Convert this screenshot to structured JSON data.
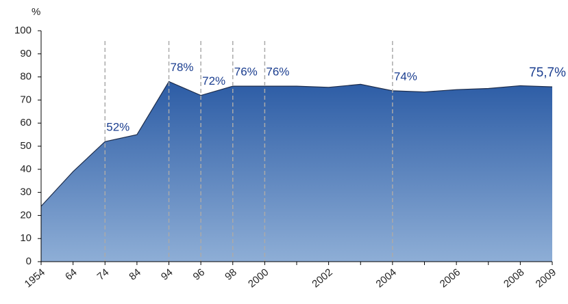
{
  "chart_data": {
    "type": "area",
    "y_label": "%",
    "categories": [
      "1954",
      "64",
      "74",
      "84",
      "94",
      "96",
      "98",
      "2000",
      null,
      "2002",
      null,
      "2004",
      null,
      "2006",
      null,
      "2008",
      "2009"
    ],
    "series": [
      {
        "color": "#2f5fa6",
        "values": [
          24,
          39,
          52,
          55,
          78,
          72,
          76,
          76,
          76,
          75.5,
          76.8,
          74,
          73.5,
          74.5,
          75,
          76.2,
          75.7
        ],
        "value_labels": [
          null,
          null,
          "52%",
          null,
          "78%",
          "72%",
          "76%",
          "76%",
          null,
          null,
          null,
          "74%",
          null,
          null,
          null,
          null,
          "75,7%"
        ]
      }
    ],
    "ylim": [
      0,
      100
    ],
    "yticks": [
      0,
      10,
      20,
      30,
      40,
      50,
      60,
      70,
      80,
      90,
      100
    ]
  }
}
